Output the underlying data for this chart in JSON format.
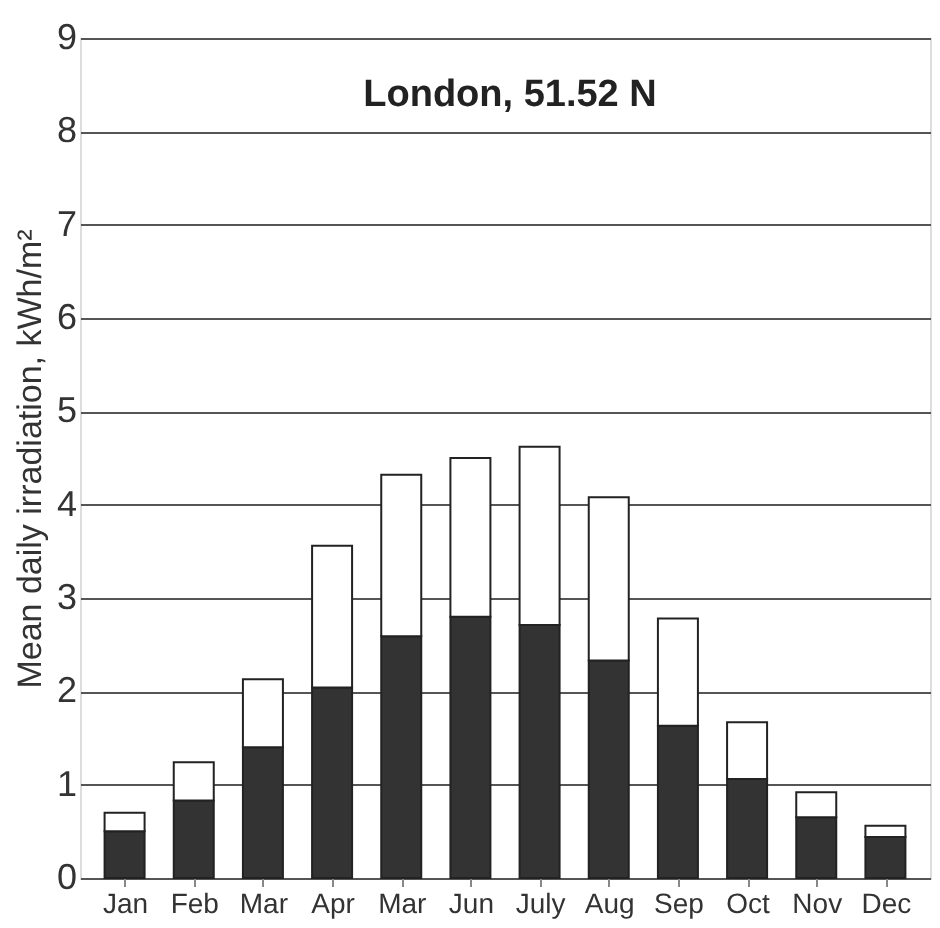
{
  "chart_data": {
    "type": "bar",
    "stacked": true,
    "annotations": [
      "London, 51.52 N"
    ],
    "ylabel": "Mean daily irradiation, kWh/m²",
    "categories": [
      "Jan",
      "Feb",
      "Mar",
      "Apr",
      "Mar",
      "Jun",
      "July",
      "Aug",
      "Sep",
      "Oct",
      "Nov",
      "Dec"
    ],
    "series": [
      {
        "color": "#333333",
        "values": [
          0.5,
          0.83,
          1.4,
          2.04,
          2.59,
          2.8,
          2.71,
          2.33,
          1.63,
          1.06,
          0.65,
          0.44
        ]
      },
      {
        "color": "#ffffff",
        "values": [
          0.2,
          0.41,
          0.73,
          1.52,
          1.73,
          1.7,
          1.91,
          1.75,
          1.15,
          0.61,
          0.27,
          0.12
        ]
      }
    ],
    "ylim": [
      0,
      9
    ],
    "yticks": [
      0,
      1,
      2,
      3,
      4,
      5,
      6,
      7,
      8,
      9
    ],
    "grid": "y"
  }
}
